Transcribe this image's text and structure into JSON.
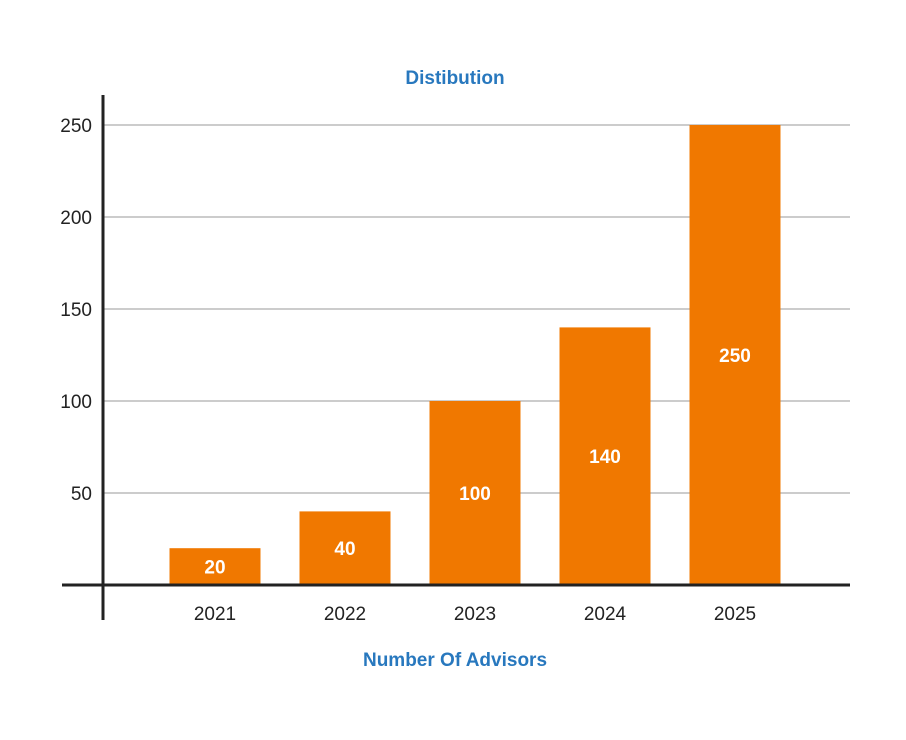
{
  "chart_data": {
    "type": "bar",
    "title": "Distibution",
    "xlabel": "Number Of Advisors",
    "ylabel": "",
    "categories": [
      "2021",
      "2022",
      "2023",
      "2024",
      "2025"
    ],
    "values": [
      20,
      40,
      100,
      140,
      250
    ],
    "data_labels": [
      "20",
      "40",
      "100",
      "140",
      "250"
    ],
    "ylim": [
      0,
      250
    ],
    "yticks": [
      50,
      100,
      150,
      200,
      250
    ],
    "grid": true,
    "legend": "none"
  },
  "colors": {
    "bar": "#F07800",
    "title": "#2878BE",
    "grid": "#9A9A9A",
    "axis": "#222222"
  }
}
